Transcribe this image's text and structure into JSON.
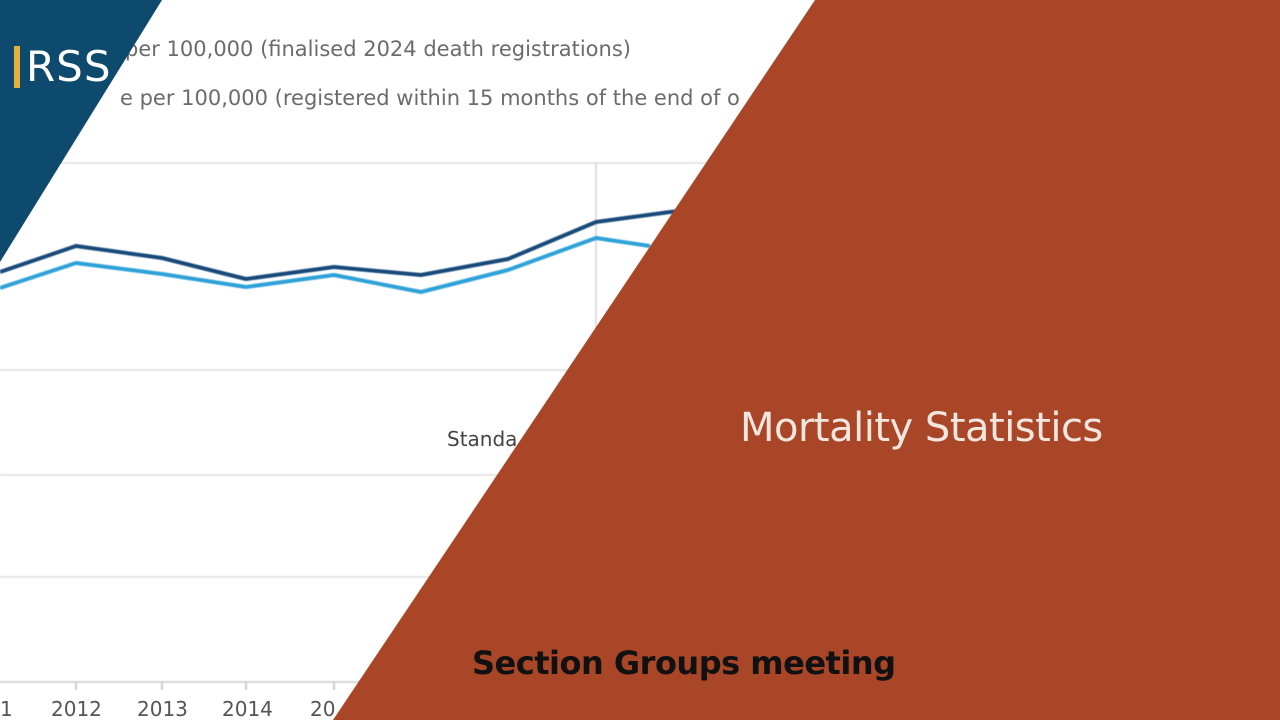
{
  "logo": {
    "text": "RSS",
    "bar_color": "#e3b23c"
  },
  "title": "Mortality Statistics",
  "subtitle": "Section Groups meeting",
  "colors": {
    "orange_panel": "#a94628",
    "blue_corner": "#0e4a6e",
    "series_dark": "#174a7a",
    "series_light": "#2ea1d8",
    "grid": "#e4e4e4"
  },
  "background_chart": {
    "legend": [
      "per 100,000 (finalised 2024 death registrations)",
      "e per 100,000 (registered within 15 months of the end of o"
    ],
    "axis_title_fragment": "Standa",
    "x_tick_labels": [
      "1",
      "2012",
      "2013",
      "2014",
      "20"
    ]
  }
}
